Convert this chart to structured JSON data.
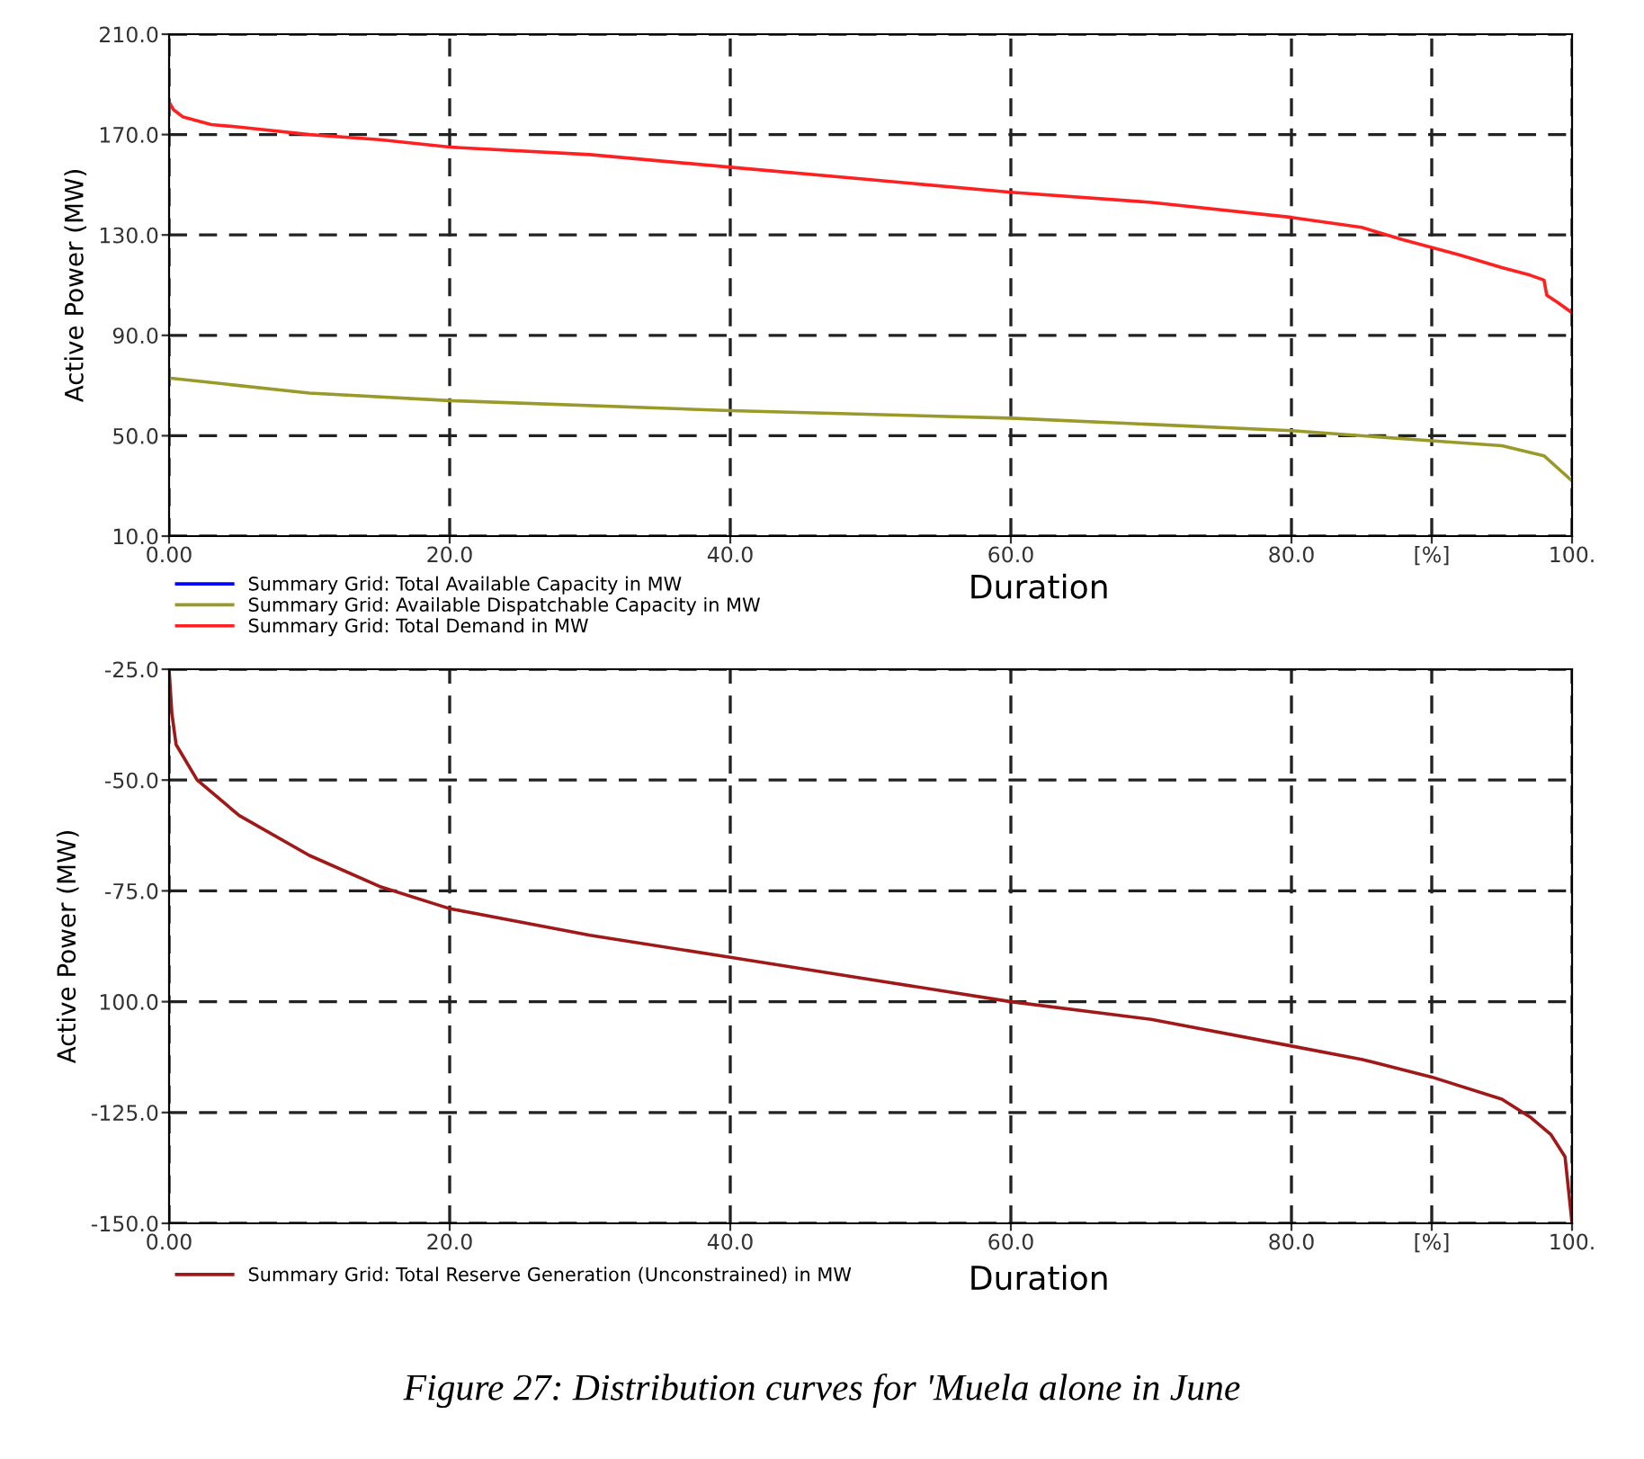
{
  "chart_data": [
    {
      "type": "line",
      "xlabel": "Duration",
      "ylabel": "Active Power (MW)",
      "xlim": [
        0,
        100
      ],
      "ylim": [
        10,
        210
      ],
      "xticks": [
        {
          "value": 0,
          "label": "0.00"
        },
        {
          "value": 20,
          "label": "20.0"
        },
        {
          "value": 40,
          "label": "40.0"
        },
        {
          "value": 60,
          "label": "60.0"
        },
        {
          "value": 80,
          "label": "80.0"
        },
        {
          "value": 90,
          "label": "[%]"
        },
        {
          "value": 100,
          "label": "100."
        }
      ],
      "yticks": [
        {
          "value": 10,
          "label": "10.0"
        },
        {
          "value": 50,
          "label": "50.0"
        },
        {
          "value": 90,
          "label": "90.0"
        },
        {
          "value": 130,
          "label": "130.0"
        },
        {
          "value": 170,
          "label": "170.0"
        },
        {
          "value": 210,
          "label": "210.0"
        }
      ],
      "grid": true,
      "legend": "bottom",
      "line_style": "solid",
      "series": [
        {
          "name": "Summary Grid: Total Available Capacity in MW",
          "color": "#0000ff"
        },
        {
          "name": "Summary Grid: Available Dispatchable Capacity in MW",
          "color": "#9a9a2a",
          "x": [
            0,
            10,
            20,
            40,
            60,
            80,
            90,
            95,
            98,
            100
          ],
          "values": [
            73,
            67,
            64,
            60,
            57,
            52,
            48,
            46,
            42,
            32
          ]
        },
        {
          "name": "Summary Grid: Total Demand in MW",
          "color": "#ff2020",
          "x": [
            0,
            0.3,
            1,
            3,
            5,
            10,
            15,
            20,
            30,
            40,
            50,
            60,
            70,
            80,
            85,
            88,
            92,
            95,
            97,
            98,
            98.2,
            99,
            100
          ],
          "values": [
            183,
            180,
            177,
            174,
            173,
            170,
            168,
            165,
            162,
            157,
            152,
            147,
            143,
            137,
            133,
            128,
            122,
            117,
            114,
            112,
            106,
            103,
            99
          ]
        }
      ]
    },
    {
      "type": "line",
      "xlabel": "Duration",
      "ylabel": "Active Power (MW)",
      "xlim": [
        0,
        100
      ],
      "ylim": [
        -150,
        -25
      ],
      "xticks": [
        {
          "value": 0,
          "label": "0.00"
        },
        {
          "value": 20,
          "label": "20.0"
        },
        {
          "value": 40,
          "label": "40.0"
        },
        {
          "value": 60,
          "label": "60.0"
        },
        {
          "value": 80,
          "label": "80.0"
        },
        {
          "value": 90,
          "label": "[%]"
        },
        {
          "value": 100,
          "label": "100."
        }
      ],
      "yticks": [
        {
          "value": -150,
          "label": "-150.0"
        },
        {
          "value": -125,
          "label": "-125.0"
        },
        {
          "value": -100,
          "label": "100.0"
        },
        {
          "value": -75,
          "label": "-75.0"
        },
        {
          "value": -50,
          "label": "-50.0"
        },
        {
          "value": -25,
          "label": "-25.0"
        }
      ],
      "grid": true,
      "legend": "bottom",
      "line_style": "solid",
      "annotations": [
        "Figure 27: Distribution curves for 'Muela alone in June"
      ],
      "series": [
        {
          "name": "Summary Grid: Total Reserve Generation (Unconstrained) in MW",
          "color": "#a01818",
          "x": [
            0,
            0.2,
            0.5,
            2,
            5,
            10,
            15,
            20,
            30,
            40,
            50,
            60,
            70,
            80,
            85,
            90,
            95,
            97,
            98.5,
            99.5,
            100
          ],
          "values": [
            -25,
            -35,
            -42,
            -50,
            -58,
            -67,
            -74,
            -79,
            -85,
            -90,
            -95,
            -100,
            -104,
            -110,
            -113,
            -117,
            -122,
            -126,
            -130,
            -135,
            -150
          ]
        }
      ]
    }
  ]
}
